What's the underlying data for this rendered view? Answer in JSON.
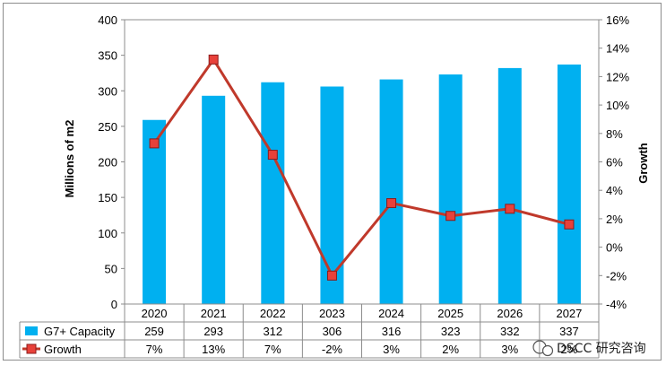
{
  "chart_data": {
    "type": "bar",
    "categories": [
      "2020",
      "2021",
      "2022",
      "2023",
      "2024",
      "2025",
      "2026",
      "2027"
    ],
    "series": [
      {
        "name": "G7+ Capacity",
        "type": "bar",
        "axis": "left",
        "color": "#00b0f0",
        "values": [
          259,
          293,
          312,
          306,
          316,
          323,
          332,
          337
        ]
      },
      {
        "name": "Growth",
        "type": "line",
        "axis": "right",
        "color": "#c0392b",
        "marker_color": "#e8413a",
        "values": [
          7.3,
          13.2,
          6.5,
          -2.0,
          3.1,
          2.2,
          2.7,
          1.6
        ]
      }
    ],
    "ylabel": "Millions of m2",
    "y2label": "Growth",
    "ylim": [
      0,
      400
    ],
    "yticks": [
      "0",
      "50",
      "100",
      "150",
      "200",
      "250",
      "300",
      "350",
      "400"
    ],
    "y2lim": [
      -4,
      16
    ],
    "y2ticks": [
      "-4%",
      "-2%",
      "0%",
      "2%",
      "4%",
      "6%",
      "8%",
      "10%",
      "12%",
      "14%",
      "16%"
    ],
    "grid": false,
    "data_table": {
      "rows": [
        {
          "label": "G7+ Capacity",
          "cells": [
            "259",
            "293",
            "312",
            "306",
            "316",
            "323",
            "332",
            "337"
          ]
        },
        {
          "label": "Growth",
          "cells": [
            "7%",
            "13%",
            "7%",
            "-2%",
            "3%",
            "2%",
            "3%",
            "2%"
          ]
        }
      ]
    }
  },
  "watermark": {
    "text": "DSCC 研究咨询"
  }
}
